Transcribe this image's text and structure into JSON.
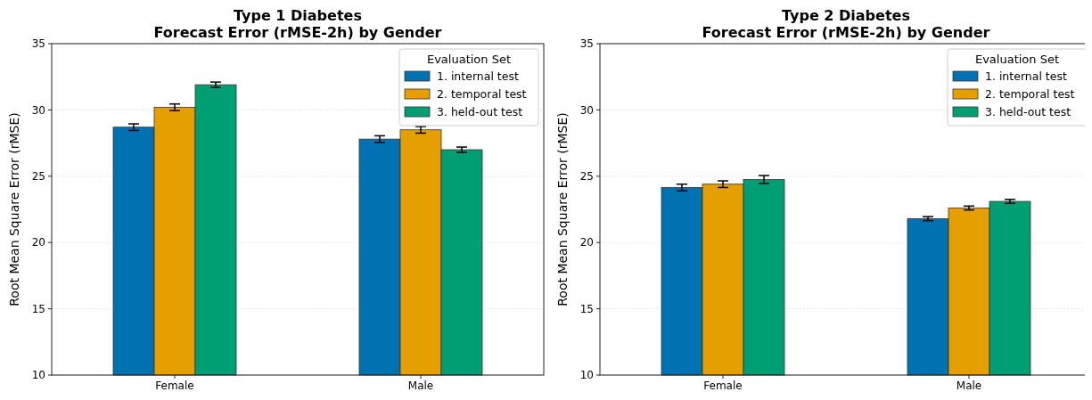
{
  "chart_data": [
    {
      "type": "bar",
      "title": "Type 1 Diabetes\nForecast Error (rMSE-2h) by Gender",
      "ylabel": "Root Mean Square Error (rMSE)",
      "categories": [
        "Female",
        "Male"
      ],
      "series": [
        {
          "name": "1. internal test",
          "color": "#0072b2",
          "values": [
            28.7,
            27.8
          ],
          "errors": [
            0.25,
            0.25
          ]
        },
        {
          "name": "2. temporal test",
          "color": "#e69f00",
          "values": [
            30.2,
            28.5
          ],
          "errors": [
            0.25,
            0.25
          ]
        },
        {
          "name": "3. held-out test",
          "color": "#009e73",
          "values": [
            31.9,
            27.0
          ],
          "errors": [
            0.2,
            0.2
          ]
        }
      ],
      "ylim": [
        10,
        35
      ],
      "yticks": [
        10,
        15,
        20,
        25,
        30,
        35
      ],
      "grid": "y",
      "legend": "top right",
      "legend_title": "Evaluation Set"
    },
    {
      "type": "bar",
      "title": "Type 2 Diabetes\nForecast Error (rMSE-2h) by Gender",
      "ylabel": "Root Mean Square Error (rMSE)",
      "categories": [
        "Female",
        "Male"
      ],
      "series": [
        {
          "name": "1. internal test",
          "color": "#0072b2",
          "values": [
            24.15,
            21.8
          ],
          "errors": [
            0.25,
            0.15
          ]
        },
        {
          "name": "2. temporal test",
          "color": "#e69f00",
          "values": [
            24.4,
            22.6
          ],
          "errors": [
            0.25,
            0.15
          ]
        },
        {
          "name": "3. held-out test",
          "color": "#009e73",
          "values": [
            24.75,
            23.1
          ],
          "errors": [
            0.3,
            0.15
          ]
        }
      ],
      "ylim": [
        10,
        35
      ],
      "yticks": [
        10,
        15,
        20,
        25,
        30,
        35
      ],
      "grid": "y",
      "legend": "top right",
      "legend_title": "Evaluation Set"
    }
  ]
}
